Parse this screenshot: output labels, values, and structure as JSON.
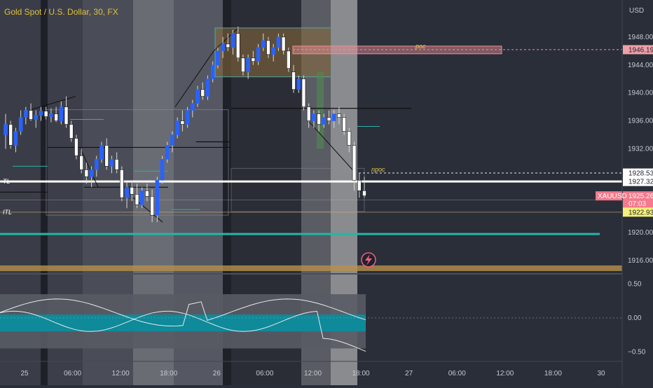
{
  "header": {
    "title": "Gold Spot / U.S. Dollar, 30, FX",
    "currency": "USD"
  },
  "chart_data": {
    "type": "candlestick",
    "symbol": "XAUUSD",
    "price_axis": {
      "ticks": [
        1948,
        1944,
        1940,
        1936,
        1932,
        1928,
        1924,
        1920,
        1916
      ],
      "tick_labels": [
        "1948.00",
        "1944.00",
        "1940.00",
        "1936.00",
        "1932.00",
        "",
        "",
        "1920.00",
        "1916.00"
      ],
      "range": [
        1914.6,
        1953.3
      ]
    },
    "time_axis": {
      "labels": [
        "25",
        "06:00",
        "12:00",
        "18:00",
        "26",
        "06:00",
        "12:00",
        "18:00",
        "27",
        "06:00",
        "12:00",
        "18:00",
        "30"
      ]
    },
    "price_tags": [
      {
        "value": "1946.19",
        "price": 1946.19,
        "bg": "#f0a0a8",
        "color": "#1e222d"
      },
      {
        "value": "1928.53",
        "price": 1928.53,
        "bg": "#ffffff",
        "color": "#1e222d"
      },
      {
        "value": "1927.32",
        "price": 1927.32,
        "bg": "#ffffff",
        "color": "#1e222d"
      },
      {
        "value": "1925.26",
        "price": 1925.26,
        "bg": "#f47a8c",
        "color": "#ffffff",
        "countdown": "07:03"
      },
      {
        "value": "1922.93",
        "price": 1922.93,
        "bg": "#f5f07a",
        "color": "#1e222d"
      }
    ],
    "symbol_tag": {
      "text": "XAUUSD",
      "bg": "#f47a8c"
    },
    "levels": [
      {
        "name": "poc",
        "label": "poc",
        "price": 1946.19
      },
      {
        "name": "npoc",
        "label": "npoc",
        "price": 1928.53
      },
      {
        "name": "TL",
        "label": "TL",
        "price": 1927.32
      },
      {
        "name": "ITL",
        "label": "ITL",
        "price": 1922.93
      },
      {
        "name": "teal-support",
        "label": "",
        "price": 1919.8
      }
    ],
    "candles": [
      [
        1934.0,
        1937.0,
        1932.0,
        1935.5
      ],
      [
        1935.5,
        1936.0,
        1932.0,
        1932.5
      ],
      [
        1932.5,
        1935.0,
        1931.5,
        1934.5
      ],
      [
        1934.5,
        1937.5,
        1934.0,
        1936.5
      ],
      [
        1936.5,
        1938.0,
        1935.5,
        1937.5
      ],
      [
        1937.5,
        1938.5,
        1936.0,
        1936.2
      ],
      [
        1936.2,
        1937.5,
        1935.0,
        1936.8
      ],
      [
        1936.8,
        1938.0,
        1936.0,
        1937.4
      ],
      [
        1937.4,
        1938.0,
        1936.2,
        1936.6
      ],
      [
        1936.6,
        1937.8,
        1935.8,
        1937.0
      ],
      [
        1937.0,
        1938.0,
        1935.8,
        1936.0
      ],
      [
        1936.0,
        1938.8,
        1935.5,
        1938.0
      ],
      [
        1938.0,
        1939.5,
        1935.0,
        1935.5
      ],
      [
        1935.5,
        1936.0,
        1933.0,
        1933.5
      ],
      [
        1933.5,
        1934.0,
        1930.5,
        1931.0
      ],
      [
        1931.0,
        1932.0,
        1928.5,
        1929.0
      ],
      [
        1929.0,
        1930.0,
        1927.0,
        1928.0
      ],
      [
        1928.0,
        1929.5,
        1926.5,
        1929.0
      ],
      [
        1929.0,
        1931.0,
        1928.0,
        1930.5
      ],
      [
        1930.5,
        1933.0,
        1930.0,
        1932.5
      ],
      [
        1932.5,
        1933.5,
        1929.0,
        1929.5
      ],
      [
        1929.5,
        1931.0,
        1928.5,
        1930.5
      ],
      [
        1930.5,
        1931.5,
        1928.5,
        1929.0
      ],
      [
        1929.0,
        1929.5,
        1924.5,
        1925.0
      ],
      [
        1925.0,
        1927.5,
        1923.5,
        1926.5
      ],
      [
        1926.5,
        1927.5,
        1924.5,
        1925.5
      ],
      [
        1925.5,
        1927.0,
        1923.5,
        1924.0
      ],
      [
        1924.0,
        1926.5,
        1923.5,
        1926.0
      ],
      [
        1926.0,
        1927.0,
        1924.5,
        1925.2
      ],
      [
        1925.2,
        1926.2,
        1921.5,
        1922.5
      ],
      [
        1922.5,
        1928.0,
        1921.5,
        1927.5
      ],
      [
        1927.5,
        1931.0,
        1927.0,
        1930.5
      ],
      [
        1930.5,
        1933.0,
        1930.0,
        1932.5
      ],
      [
        1932.5,
        1934.5,
        1931.5,
        1934.0
      ],
      [
        1934.0,
        1936.5,
        1933.5,
        1936.0
      ],
      [
        1936.0,
        1937.5,
        1934.5,
        1935.5
      ],
      [
        1935.5,
        1938.0,
        1935.0,
        1937.5
      ],
      [
        1937.5,
        1939.0,
        1936.5,
        1938.5
      ],
      [
        1938.5,
        1941.0,
        1938.0,
        1940.5
      ],
      [
        1940.5,
        1941.5,
        1939.0,
        1939.5
      ],
      [
        1939.5,
        1942.5,
        1939.0,
        1942.0
      ],
      [
        1942.0,
        1944.5,
        1941.5,
        1944.0
      ],
      [
        1944.0,
        1946.5,
        1943.5,
        1946.0
      ],
      [
        1946.0,
        1948.0,
        1945.0,
        1947.0
      ],
      [
        1947.0,
        1948.5,
        1946.0,
        1946.5
      ],
      [
        1946.5,
        1949.0,
        1945.5,
        1948.5
      ],
      [
        1948.5,
        1949.5,
        1944.5,
        1945.0
      ],
      [
        1945.0,
        1945.5,
        1942.5,
        1943.0
      ],
      [
        1943.0,
        1945.5,
        1942.0,
        1945.0
      ],
      [
        1945.0,
        1946.0,
        1944.0,
        1944.5
      ],
      [
        1944.5,
        1947.0,
        1944.0,
        1946.5
      ],
      [
        1946.5,
        1948.5,
        1946.0,
        1947.5
      ],
      [
        1947.5,
        1948.0,
        1945.0,
        1945.5
      ],
      [
        1945.5,
        1947.0,
        1944.5,
        1946.5
      ],
      [
        1946.5,
        1948.5,
        1946.0,
        1948.0
      ],
      [
        1948.0,
        1948.5,
        1945.5,
        1946.0
      ],
      [
        1946.0,
        1946.5,
        1943.0,
        1943.5
      ],
      [
        1943.0,
        1944.0,
        1940.0,
        1940.5
      ],
      [
        1940.5,
        1942.5,
        1940.0,
        1942.0
      ],
      [
        1942.0,
        1942.5,
        1937.5,
        1938.0
      ],
      [
        1938.0,
        1938.5,
        1935.0,
        1936.0
      ],
      [
        1936.0,
        1937.5,
        1935.0,
        1937.0
      ],
      [
        1937.0,
        1937.5,
        1934.5,
        1935.5
      ],
      [
        1935.5,
        1937.0,
        1935.0,
        1936.5
      ],
      [
        1936.5,
        1937.5,
        1935.5,
        1936.0
      ],
      [
        1936.0,
        1937.5,
        1935.0,
        1937.0
      ],
      [
        1937.0,
        1938.0,
        1935.5,
        1936.5
      ],
      [
        1936.5,
        1937.0,
        1934.0,
        1934.5
      ],
      [
        1934.5,
        1935.0,
        1931.5,
        1932.5
      ],
      [
        1932.5,
        1933.0,
        1926.0,
        1927.5
      ],
      [
        1927.5,
        1928.5,
        1925.0,
        1926.0
      ],
      [
        1926.0,
        1928.0,
        1925.0,
        1925.26
      ]
    ],
    "oscillator": {
      "ticks": [
        0.5,
        0.0,
        -0.5
      ],
      "tick_labels": [
        "0.50",
        "0.00",
        "−0.50"
      ],
      "range": [
        -0.6,
        0.63
      ]
    }
  }
}
